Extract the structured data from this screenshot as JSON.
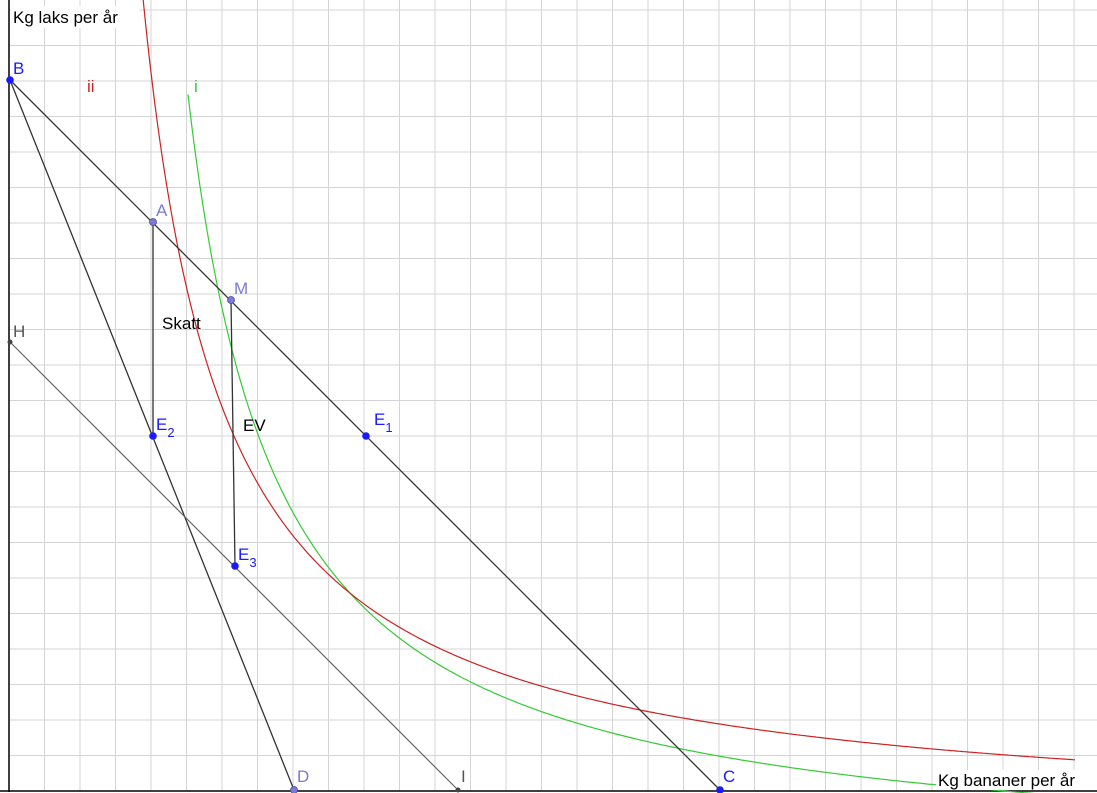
{
  "axes": {
    "y_label": "Kg laks per år",
    "x_label": "Kg bananer per år"
  },
  "curves": [
    {
      "id": "i",
      "label": "i",
      "color": "#33cc33"
    },
    {
      "id": "ii",
      "label": "ii",
      "color": "#cc2222"
    }
  ],
  "points": [
    {
      "id": "B",
      "label": "B",
      "sub": "",
      "color": "#1a1aff"
    },
    {
      "id": "A",
      "label": "A",
      "sub": "",
      "color": "#7b7bd6"
    },
    {
      "id": "M",
      "label": "M",
      "sub": "",
      "color": "#7b7bd6"
    },
    {
      "id": "H",
      "label": "H",
      "sub": "",
      "color": "#555555"
    },
    {
      "id": "E1",
      "label": "E",
      "sub": "1",
      "color": "#1a1aff"
    },
    {
      "id": "E2",
      "label": "E",
      "sub": "2",
      "color": "#1a1aff"
    },
    {
      "id": "E3",
      "label": "E",
      "sub": "3",
      "color": "#1a1aff"
    },
    {
      "id": "D",
      "label": "D",
      "sub": "",
      "color": "#7b7bd6"
    },
    {
      "id": "I",
      "label": "I",
      "sub": "",
      "color": "#555555"
    },
    {
      "id": "C",
      "label": "C",
      "sub": "",
      "color": "#1a1aff"
    }
  ],
  "segment_labels": {
    "tax": "Skatt",
    "ev": "EV"
  },
  "colors": {
    "grid": "#d4d4d4",
    "axis": "#000000",
    "line_dark": "#333333",
    "line_grey": "#666666"
  }
}
